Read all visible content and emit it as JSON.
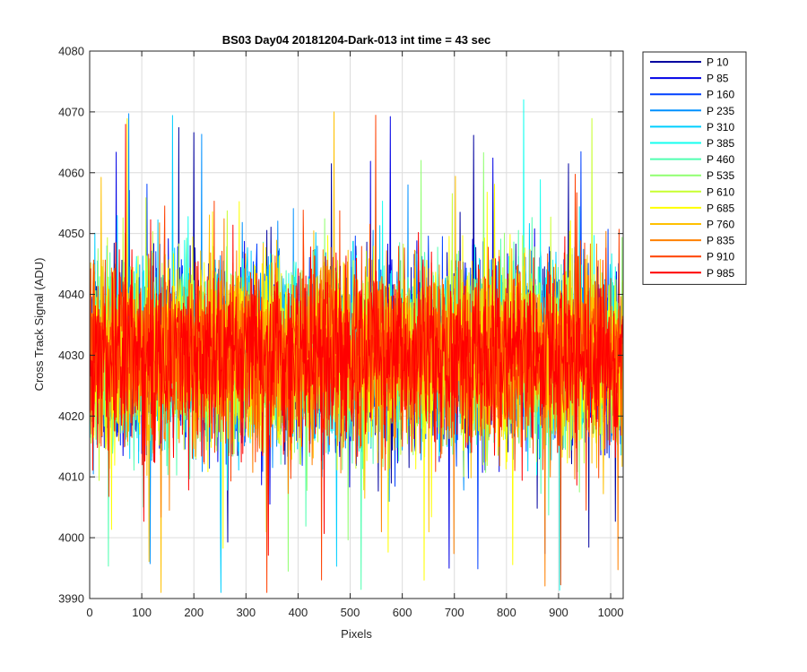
{
  "chart_data": {
    "type": "line",
    "title": "BS03 Day04 20181204-Dark-013 int time = 43 sec",
    "xlabel": "Pixels",
    "ylabel": "Cross Track Signal (ADU)",
    "xlim": [
      0,
      1024
    ],
    "ylim": [
      3990,
      4080
    ],
    "x_ticks": [
      0,
      100,
      200,
      300,
      400,
      500,
      600,
      700,
      800,
      900,
      1000
    ],
    "y_ticks": [
      3990,
      4000,
      4010,
      4020,
      4030,
      4040,
      4050,
      4060,
      4070,
      4080
    ],
    "grid": true,
    "legend_position": "outside-right-top",
    "baseline": 4030,
    "n_points": 1024,
    "series": [
      {
        "name": "P 10",
        "color": "#00009f"
      },
      {
        "name": "P 85",
        "color": "#0000e6"
      },
      {
        "name": "P 160",
        "color": "#0040ff"
      },
      {
        "name": "P 235",
        "color": "#0090ff"
      },
      {
        "name": "P 310",
        "color": "#00cfff"
      },
      {
        "name": "P 385",
        "color": "#14ffef"
      },
      {
        "name": "P 460",
        "color": "#50ffb0"
      },
      {
        "name": "P 535",
        "color": "#90ff70"
      },
      {
        "name": "P 610",
        "color": "#c8ff30"
      },
      {
        "name": "P 685",
        "color": "#ffff00"
      },
      {
        "name": "P 760",
        "color": "#ffc000"
      },
      {
        "name": "P 835",
        "color": "#ff8000"
      },
      {
        "name": "P 910",
        "color": "#ff4000"
      },
      {
        "name": "P 985",
        "color": "#ff0000"
      }
    ]
  }
}
